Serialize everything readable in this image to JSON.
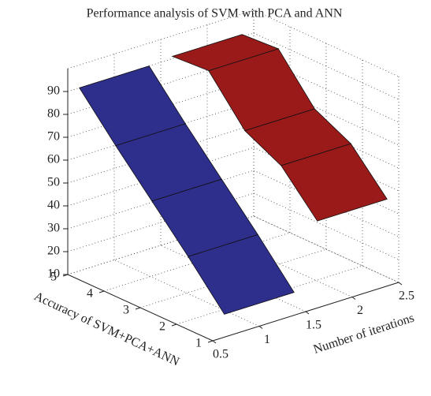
{
  "chart_data": {
    "type": "ribbon3d",
    "title": "Performance analysis of SVM with PCA and ANN",
    "xlabel": "Number of iterations",
    "ylabel": "Accuracy of SVM+PCA+ANN",
    "xlim": [
      0.5,
      2.5
    ],
    "xticks": [
      0.5,
      1,
      1.5,
      2,
      2.5
    ],
    "ylim": [
      1,
      5
    ],
    "yticks": [
      1,
      2,
      3,
      4,
      5
    ],
    "zlim": [
      10,
      100
    ],
    "zticks": [
      10,
      20,
      30,
      40,
      50,
      60,
      70,
      80,
      90
    ],
    "grid": true,
    "series": [
      {
        "color": "#2e2e8c",
        "values": [
          20,
          38,
          55,
          72,
          90
        ]
      },
      {
        "color": "#9a1a1a",
        "values": [
          48,
          65,
          73,
          92,
          91
        ]
      }
    ]
  }
}
